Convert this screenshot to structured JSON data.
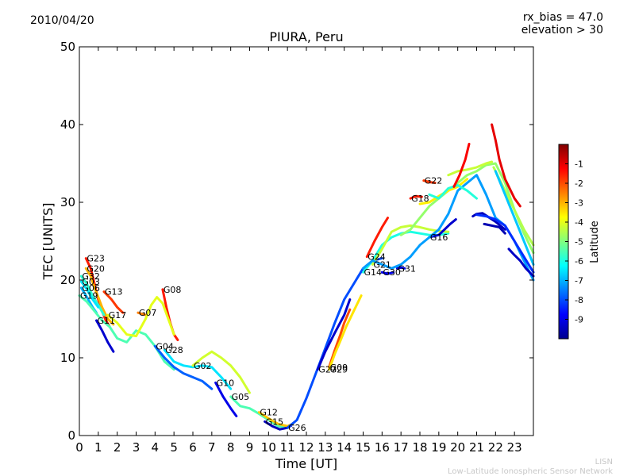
{
  "header": {
    "date": "2010/04/20",
    "note_line1": "rx_bias = 47.0",
    "note_line2": "elevation > 30"
  },
  "footer": {
    "line1": "LISN",
    "line2": "Low-Latitude Ionospheric Sensor Network"
  },
  "chart_data": {
    "type": "line",
    "title": "PIURA, Peru",
    "xlabel": "Time [UT]",
    "ylabel": "TEC [UNITS]",
    "xlim": [
      0,
      24
    ],
    "ylim": [
      0,
      50
    ],
    "xticks": [
      "0",
      "1",
      "2",
      "3",
      "4",
      "5",
      "6",
      "7",
      "8",
      "9",
      "10",
      "11",
      "12",
      "13",
      "14",
      "15",
      "16",
      "17",
      "18",
      "19",
      "20",
      "21",
      "22",
      "23"
    ],
    "yticks": [
      "0",
      "10",
      "20",
      "30",
      "40",
      "50"
    ],
    "colorbar": {
      "label": "Latitude",
      "range": [
        -10,
        0
      ],
      "ticks": [
        "-1",
        "-2",
        "-3",
        "-4",
        "-5",
        "-6",
        "-7",
        "-8",
        "-9"
      ]
    },
    "series": [
      {
        "name": "G23",
        "lat": -1.5,
        "x": [
          0.35,
          0.6,
          0.8,
          1.0,
          1.2,
          1.4,
          1.6
        ],
        "y": [
          22.8,
          21.5,
          19.5,
          17.5,
          16.0,
          14.8,
          14.0
        ]
      },
      {
        "name": "G20",
        "lat": -3.0,
        "x": [
          0.35,
          0.6,
          0.8,
          1.0,
          1.2,
          1.5,
          1.8
        ],
        "y": [
          21.5,
          20.5,
          19.0,
          17.8,
          16.5,
          15.0,
          14.3
        ]
      },
      {
        "name": "G32",
        "lat": -5.8,
        "x": [
          0.1,
          0.4,
          0.7,
          1.0,
          1.3
        ],
        "y": [
          20.5,
          19.5,
          18.0,
          16.8,
          15.5
        ]
      },
      {
        "name": "G03",
        "lat": -6.5,
        "x": [
          0.1,
          0.4,
          0.7,
          1.0
        ],
        "y": [
          19.8,
          18.8,
          17.5,
          16.5
        ]
      },
      {
        "name": "G06",
        "lat": -7.0,
        "x": [
          0.1,
          0.4,
          0.7,
          0.9
        ],
        "y": [
          19.0,
          17.8,
          16.5,
          15.8
        ]
      },
      {
        "name": "G19",
        "lat": -5.5,
        "x": [
          0.0,
          0.4,
          0.8,
          1.2,
          1.6,
          2.0,
          2.5,
          3.0,
          3.5,
          4.0,
          4.5,
          5.0
        ],
        "y": [
          18.0,
          17.2,
          16.0,
          14.8,
          14.0,
          12.5,
          12.0,
          13.5,
          13.0,
          11.5,
          9.5,
          8.5
        ]
      },
      {
        "name": "G13",
        "lat": -1.8,
        "x": [
          1.3,
          1.7,
          2.0,
          2.3
        ],
        "y": [
          18.5,
          17.5,
          16.5,
          15.8
        ]
      },
      {
        "name": "G11",
        "lat": -9.3,
        "x": [
          0.9,
          1.2,
          1.5,
          1.8
        ],
        "y": [
          14.8,
          13.5,
          12.0,
          10.8
        ]
      },
      {
        "name": "G07",
        "lat": -2.5,
        "x": [
          3.1,
          3.5
        ],
        "y": [
          15.8,
          15.5
        ]
      },
      {
        "name": "G08",
        "lat": -1.5,
        "x": [
          4.4,
          4.6,
          4.8,
          5.0,
          5.2
        ],
        "y": [
          18.8,
          16.5,
          14.5,
          13.0,
          12.3
        ]
      },
      {
        "name": "G17",
        "lat": -4.0,
        "x": [
          1.5,
          2.0,
          2.5,
          3.0,
          3.5,
          3.8,
          4.1,
          4.4,
          4.7,
          5.0
        ],
        "y": [
          15.5,
          14.5,
          13.0,
          12.8,
          15.0,
          16.8,
          17.8,
          17.0,
          15.0,
          13.0
        ]
      },
      {
        "name": "G04",
        "lat": -7.8,
        "x": [
          4.0,
          4.5,
          5.0,
          5.5,
          6.0,
          6.5,
          7.0
        ],
        "y": [
          11.5,
          10.0,
          8.8,
          8.0,
          7.5,
          7.0,
          6.0
        ]
      },
      {
        "name": "G28",
        "lat": -6.5,
        "x": [
          4.5,
          5.0,
          5.5,
          6.0,
          6.5,
          7.0,
          7.5,
          8.0
        ],
        "y": [
          11.0,
          9.5,
          9.0,
          8.8,
          9.0,
          8.8,
          7.5,
          6.0
        ]
      },
      {
        "name": "G02",
        "lat": -4.2,
        "x": [
          6.0,
          6.5,
          7.0,
          7.5,
          8.0,
          8.5,
          9.0
        ],
        "y": [
          9.0,
          10.0,
          10.8,
          10.0,
          9.0,
          7.5,
          5.5
        ]
      },
      {
        "name": "G10",
        "lat": -9.0,
        "x": [
          7.2,
          7.6,
          8.0,
          8.3
        ],
        "y": [
          6.8,
          5.0,
          3.5,
          2.5
        ]
      },
      {
        "name": "G05",
        "lat": -5.5,
        "x": [
          8.0,
          8.5,
          9.0,
          9.5,
          10.0,
          10.5,
          11.0
        ],
        "y": [
          5.0,
          3.8,
          3.5,
          2.8,
          2.0,
          1.2,
          1.0
        ]
      },
      {
        "name": "G12",
        "lat": -3.2,
        "x": [
          9.5,
          10.0,
          10.5,
          11.0,
          11.3
        ],
        "y": [
          3.0,
          2.2,
          1.5,
          1.2,
          1.5
        ]
      },
      {
        "name": "G15",
        "lat": -9.5,
        "x": [
          9.8,
          10.2,
          10.6,
          11.0,
          11.2
        ],
        "y": [
          1.8,
          1.2,
          0.8,
          1.0,
          1.3
        ]
      },
      {
        "name": "G26",
        "lat": -8.0,
        "x": [
          11.0,
          11.5,
          12.0,
          12.5,
          13.0,
          13.5,
          14.0,
          14.5,
          15.0,
          15.5,
          16.0
        ],
        "y": [
          1.0,
          2.0,
          4.8,
          8.0,
          11.2,
          14.5,
          17.5,
          19.5,
          21.5,
          22.5,
          22.8
        ]
      },
      {
        "name": "G27",
        "lat": -9.3,
        "x": [
          12.6,
          13.0,
          13.5,
          14.0,
          14.3
        ],
        "y": [
          8.5,
          10.8,
          13.2,
          15.5,
          17.5
        ]
      },
      {
        "name": "G09",
        "lat": -2.0,
        "x": [
          13.2,
          13.5,
          13.8,
          14.0,
          14.3
        ],
        "y": [
          8.8,
          11.0,
          13.0,
          14.5,
          16.2
        ]
      },
      {
        "name": "G29",
        "lat": -3.5,
        "x": [
          13.2,
          13.5,
          13.8,
          14.1,
          14.5,
          14.9
        ],
        "y": [
          8.5,
          10.5,
          12.2,
          14.0,
          16.0,
          18.0
        ]
      },
      {
        "name": "G14",
        "lat": -6.0,
        "x": [
          15.0,
          15.5,
          16.0,
          16.5,
          17.0,
          17.5,
          18.0,
          18.5,
          19.0,
          19.5
        ],
        "y": [
          21.0,
          22.5,
          24.5,
          25.5,
          26.0,
          26.2,
          26.0,
          25.8,
          25.8,
          26.0
        ]
      },
      {
        "name": "G24",
        "lat": -1.5,
        "x": [
          15.2,
          15.6,
          16.0,
          16.3
        ],
        "y": [
          23.0,
          25.0,
          26.8,
          28.0
        ]
      },
      {
        "name": "G21",
        "lat": -4.3,
        "x": [
          15.5,
          16.0,
          16.5,
          17.0,
          17.5,
          18.0,
          18.5,
          19.0,
          19.5
        ],
        "y": [
          22.0,
          24.0,
          26.2,
          26.8,
          27.0,
          26.8,
          26.5,
          26.3,
          26.2
        ]
      },
      {
        "name": "G30",
        "lat": -9.0,
        "x": [
          16.0,
          16.3,
          16.6
        ],
        "y": [
          21.0,
          20.8,
          21.0
        ]
      },
      {
        "name": "G31",
        "lat": -9.2,
        "x": [
          16.8,
          17.0,
          17.2
        ],
        "y": [
          21.5,
          21.6,
          21.5
        ]
      },
      {
        "name": "G18",
        "lat": -1.5,
        "x": [
          17.5,
          17.8,
          18.1
        ],
        "y": [
          30.5,
          30.8,
          30.7
        ]
      },
      {
        "name": "G22",
        "lat": -1.8,
        "x": [
          18.2,
          18.5,
          18.8
        ],
        "y": [
          32.8,
          32.6,
          32.5
        ]
      },
      {
        "name": "G16",
        "lat": -9.3,
        "x": [
          18.5,
          19.0,
          19.3,
          19.6,
          19.9
        ],
        "y": [
          25.5,
          25.8,
          26.5,
          27.2,
          27.8
        ]
      },
      {
        "name": "",
        "lat": -7.2,
        "x": [
          15.0,
          15.5,
          16.0,
          16.5,
          17.0,
          17.5,
          18.0,
          18.5,
          19.0,
          19.5,
          20.0,
          20.5,
          21.0,
          21.5,
          22.0,
          22.5,
          23.0,
          23.5,
          24.0
        ],
        "y": [
          21.5,
          22.5,
          22.0,
          21.5,
          22.0,
          23.0,
          24.5,
          25.5,
          26.5,
          28.5,
          31.5,
          32.5,
          33.5,
          31.0,
          28.0,
          27.0,
          25.0,
          22.5,
          20.0
        ]
      },
      {
        "name": "",
        "lat": -4.8,
        "x": [
          17.0,
          17.5,
          18.0,
          18.5,
          19.0,
          19.5,
          20.0,
          20.5,
          21.0,
          21.5,
          22.0,
          22.5,
          23.0,
          23.5,
          24.0
        ],
        "y": [
          25.8,
          26.5,
          28.0,
          29.5,
          30.5,
          31.5,
          32.5,
          33.5,
          34.0,
          34.8,
          35.0,
          32.5,
          29.0,
          26.0,
          23.5
        ]
      },
      {
        "name": "",
        "lat": -3.6,
        "x": [
          18.0,
          18.5,
          19.0,
          19.5,
          20.0,
          20.5
        ],
        "y": [
          29.8,
          30.0,
          30.8,
          31.5,
          32.0,
          33.0
        ]
      },
      {
        "name": "",
        "lat": -5.9,
        "x": [
          18.5,
          19.0,
          19.5,
          20.0,
          20.5,
          21.0
        ],
        "y": [
          31.0,
          30.5,
          31.8,
          32.2,
          31.5,
          30.5
        ]
      },
      {
        "name": "",
        "lat": -4.3,
        "x": [
          19.5,
          20.0,
          20.5,
          21.0,
          21.5,
          21.8
        ],
        "y": [
          33.5,
          34.0,
          34.2,
          34.5,
          35.0,
          35.2
        ]
      },
      {
        "name": "",
        "lat": -1.2,
        "x": [
          19.8,
          20.1,
          20.4,
          20.6
        ],
        "y": [
          32.0,
          33.5,
          35.5,
          37.5
        ]
      },
      {
        "name": "",
        "lat": -9.5,
        "x": [
          20.8,
          21.0,
          21.3,
          21.5,
          22.0,
          22.5
        ],
        "y": [
          28.2,
          28.5,
          28.6,
          28.3,
          27.5,
          26.5
        ]
      },
      {
        "name": "",
        "lat": -8.3,
        "x": [
          21.0,
          21.5,
          22.0,
          22.5,
          23.0,
          23.5,
          24.0
        ],
        "y": [
          28.4,
          28.2,
          27.8,
          27.0,
          25.0,
          23.0,
          21.0
        ]
      },
      {
        "name": "",
        "lat": -9.6,
        "x": [
          21.4,
          21.8,
          22.2,
          22.5
        ],
        "y": [
          27.2,
          27.0,
          26.8,
          26.0
        ]
      },
      {
        "name": "",
        "lat": -9.4,
        "x": [
          22.7,
          23.0,
          23.3,
          23.6,
          24.0
        ],
        "y": [
          24.0,
          23.2,
          22.5,
          21.5,
          20.5
        ]
      },
      {
        "name": "",
        "lat": -1.0,
        "x": [
          21.8,
          22.0,
          22.2,
          22.5,
          23.0,
          23.3
        ],
        "y": [
          40.0,
          38.0,
          35.5,
          33.0,
          30.5,
          29.5
        ]
      },
      {
        "name": "",
        "lat": -4.5,
        "x": [
          21.9,
          22.2,
          22.5,
          23.0,
          23.5,
          24.0
        ],
        "y": [
          34.5,
          33.0,
          31.5,
          29.0,
          26.5,
          24.5
        ]
      },
      {
        "name": "",
        "lat": -6.8,
        "x": [
          22.0,
          22.5,
          23.0,
          23.5,
          24.0
        ],
        "y": [
          34.0,
          31.0,
          28.0,
          25.0,
          22.0
        ]
      }
    ]
  }
}
